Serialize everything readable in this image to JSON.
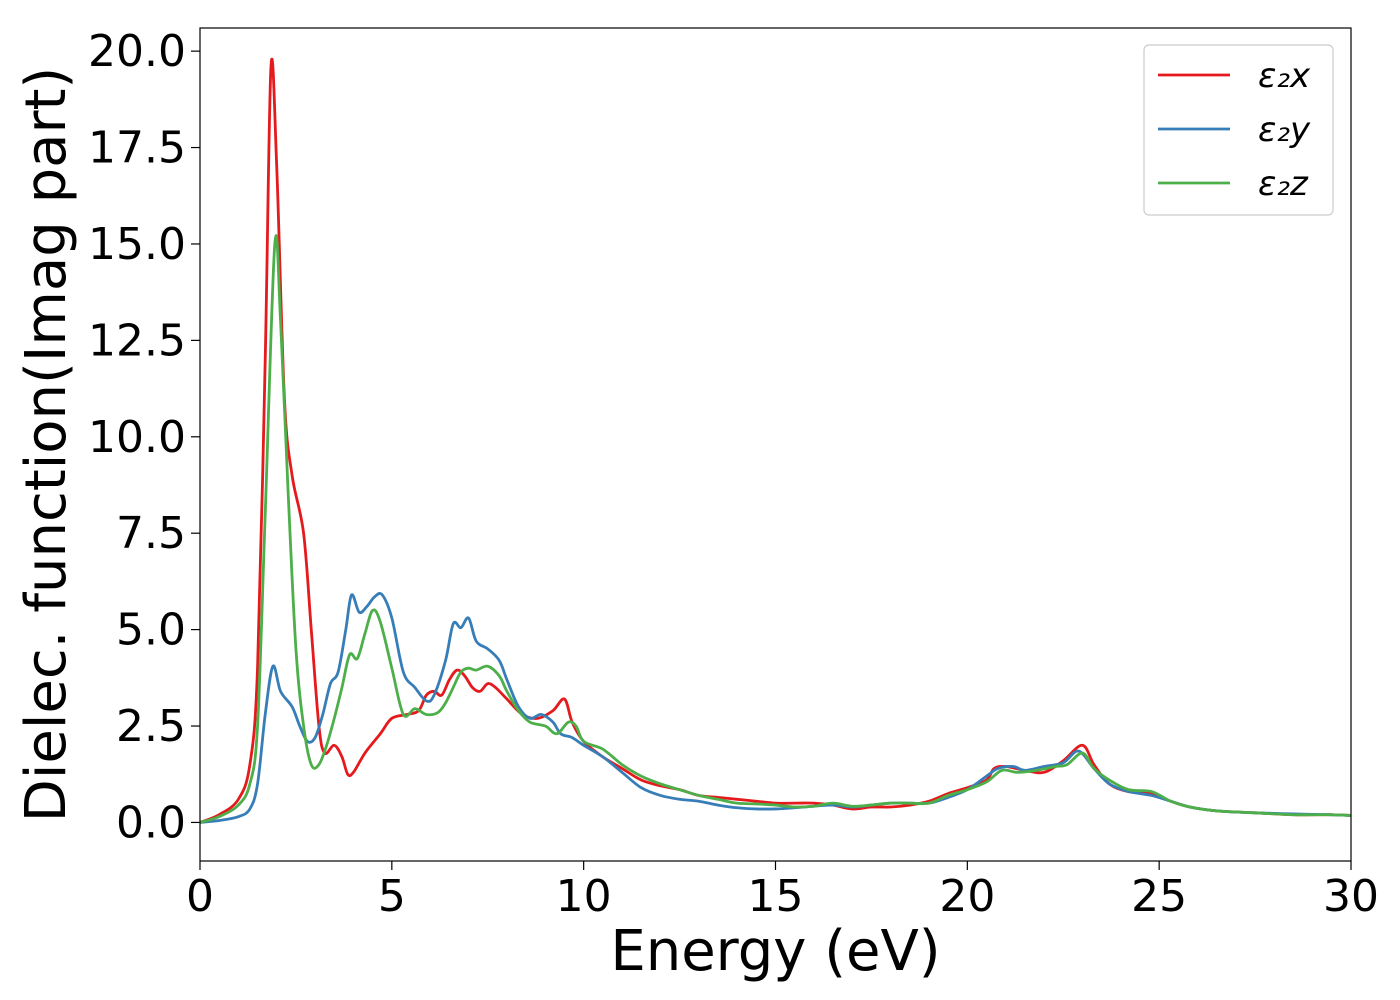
{
  "chart_data": {
    "type": "line",
    "title": "",
    "xlabel": "Energy (eV)",
    "ylabel": "Dielec. function(Imag part)",
    "xlim": [
      0,
      30
    ],
    "ylim": [
      -1.0,
      20.6
    ],
    "xticks": [
      0,
      5,
      10,
      15,
      20,
      25,
      30
    ],
    "xtick_labels": [
      "0",
      "5",
      "10",
      "15",
      "20",
      "25",
      "30"
    ],
    "yticks": [
      0.0,
      2.5,
      5.0,
      7.5,
      10.0,
      12.5,
      15.0,
      17.5,
      20.0
    ],
    "ytick_labels": [
      "0.0",
      "2.5",
      "5.0",
      "7.5",
      "10.0",
      "12.5",
      "15.0",
      "17.5",
      "20.0"
    ],
    "grid": false,
    "legend_position": "top-right",
    "series": [
      {
        "name": "ε₂x",
        "color": "#e41a1c",
        "points": [
          [
            0,
            0
          ],
          [
            0.5,
            0.2
          ],
          [
            1.0,
            0.6
          ],
          [
            1.3,
            1.5
          ],
          [
            1.5,
            4.0
          ],
          [
            1.7,
            12.0
          ],
          [
            1.85,
            19.6
          ],
          [
            2.0,
            17.0
          ],
          [
            2.2,
            11.0
          ],
          [
            2.4,
            9.0
          ],
          [
            2.7,
            7.5
          ],
          [
            2.9,
            5.0
          ],
          [
            3.1,
            2.5
          ],
          [
            3.25,
            1.8
          ],
          [
            3.5,
            2.0
          ],
          [
            3.7,
            1.7
          ],
          [
            3.85,
            1.25
          ],
          [
            4.0,
            1.3
          ],
          [
            4.3,
            1.8
          ],
          [
            4.7,
            2.3
          ],
          [
            5.0,
            2.7
          ],
          [
            5.4,
            2.8
          ],
          [
            5.7,
            2.9
          ],
          [
            5.9,
            3.3
          ],
          [
            6.1,
            3.4
          ],
          [
            6.3,
            3.3
          ],
          [
            6.5,
            3.7
          ],
          [
            6.7,
            3.95
          ],
          [
            6.9,
            3.8
          ],
          [
            7.1,
            3.5
          ],
          [
            7.3,
            3.4
          ],
          [
            7.5,
            3.6
          ],
          [
            7.7,
            3.5
          ],
          [
            8.0,
            3.2
          ],
          [
            8.4,
            2.8
          ],
          [
            8.8,
            2.7
          ],
          [
            9.2,
            2.9
          ],
          [
            9.5,
            3.2
          ],
          [
            9.7,
            2.6
          ],
          [
            10.0,
            2.1
          ],
          [
            10.5,
            1.7
          ],
          [
            11.0,
            1.4
          ],
          [
            11.5,
            1.1
          ],
          [
            12.0,
            0.95
          ],
          [
            12.5,
            0.85
          ],
          [
            13.0,
            0.7
          ],
          [
            13.5,
            0.65
          ],
          [
            14.0,
            0.6
          ],
          [
            14.5,
            0.55
          ],
          [
            15.0,
            0.5
          ],
          [
            15.5,
            0.5
          ],
          [
            16.0,
            0.5
          ],
          [
            16.5,
            0.45
          ],
          [
            17.0,
            0.35
          ],
          [
            17.5,
            0.4
          ],
          [
            18.0,
            0.4
          ],
          [
            18.5,
            0.45
          ],
          [
            19.0,
            0.55
          ],
          [
            19.5,
            0.75
          ],
          [
            20.0,
            0.9
          ],
          [
            20.5,
            1.1
          ],
          [
            20.7,
            1.4
          ],
          [
            21.0,
            1.45
          ],
          [
            21.5,
            1.35
          ],
          [
            22.0,
            1.3
          ],
          [
            22.5,
            1.6
          ],
          [
            23.0,
            2.0
          ],
          [
            23.3,
            1.5
          ],
          [
            23.7,
            1.0
          ],
          [
            24.2,
            0.8
          ],
          [
            24.8,
            0.75
          ],
          [
            25.3,
            0.55
          ],
          [
            25.8,
            0.4
          ],
          [
            26.5,
            0.3
          ],
          [
            27.5,
            0.25
          ],
          [
            28.5,
            0.2
          ],
          [
            29.5,
            0.2
          ],
          [
            30.0,
            0.18
          ]
        ]
      },
      {
        "name": "ε₂y",
        "color": "#377eb8",
        "points": [
          [
            0,
            0
          ],
          [
            0.5,
            0.05
          ],
          [
            1.0,
            0.15
          ],
          [
            1.3,
            0.35
          ],
          [
            1.5,
            1.0
          ],
          [
            1.7,
            2.8
          ],
          [
            1.9,
            4.05
          ],
          [
            2.1,
            3.4
          ],
          [
            2.4,
            3.0
          ],
          [
            2.6,
            2.5
          ],
          [
            2.8,
            2.1
          ],
          [
            3.0,
            2.2
          ],
          [
            3.2,
            2.8
          ],
          [
            3.4,
            3.6
          ],
          [
            3.6,
            3.9
          ],
          [
            3.8,
            5.0
          ],
          [
            3.95,
            5.9
          ],
          [
            4.15,
            5.45
          ],
          [
            4.35,
            5.6
          ],
          [
            4.55,
            5.85
          ],
          [
            4.75,
            5.9
          ],
          [
            5.0,
            5.3
          ],
          [
            5.3,
            3.9
          ],
          [
            5.6,
            3.5
          ],
          [
            5.9,
            3.15
          ],
          [
            6.1,
            3.3
          ],
          [
            6.4,
            4.2
          ],
          [
            6.6,
            5.15
          ],
          [
            6.8,
            5.05
          ],
          [
            7.0,
            5.3
          ],
          [
            7.2,
            4.7
          ],
          [
            7.5,
            4.5
          ],
          [
            7.8,
            4.2
          ],
          [
            8.0,
            3.7
          ],
          [
            8.3,
            3.0
          ],
          [
            8.6,
            2.7
          ],
          [
            8.9,
            2.8
          ],
          [
            9.2,
            2.6
          ],
          [
            9.4,
            2.3
          ],
          [
            9.7,
            2.2
          ],
          [
            10.0,
            2.0
          ],
          [
            10.5,
            1.7
          ],
          [
            11.0,
            1.3
          ],
          [
            11.5,
            0.9
          ],
          [
            12.0,
            0.7
          ],
          [
            12.5,
            0.6
          ],
          [
            13.0,
            0.55
          ],
          [
            13.5,
            0.45
          ],
          [
            14.0,
            0.38
          ],
          [
            14.5,
            0.35
          ],
          [
            15.0,
            0.35
          ],
          [
            15.5,
            0.38
          ],
          [
            16.0,
            0.42
          ],
          [
            16.5,
            0.45
          ],
          [
            17.0,
            0.4
          ],
          [
            17.5,
            0.45
          ],
          [
            18.0,
            0.5
          ],
          [
            18.5,
            0.5
          ],
          [
            19.0,
            0.5
          ],
          [
            19.5,
            0.65
          ],
          [
            20.0,
            0.85
          ],
          [
            20.5,
            1.2
          ],
          [
            20.8,
            1.4
          ],
          [
            21.2,
            1.45
          ],
          [
            21.5,
            1.35
          ],
          [
            22.0,
            1.45
          ],
          [
            22.5,
            1.55
          ],
          [
            22.9,
            1.85
          ],
          [
            23.3,
            1.4
          ],
          [
            23.7,
            1.0
          ],
          [
            24.2,
            0.8
          ],
          [
            24.8,
            0.7
          ],
          [
            25.3,
            0.55
          ],
          [
            25.8,
            0.4
          ],
          [
            26.5,
            0.3
          ],
          [
            27.5,
            0.25
          ],
          [
            28.5,
            0.22
          ],
          [
            29.5,
            0.2
          ],
          [
            30.0,
            0.18
          ]
        ]
      },
      {
        "name": "ε₂z",
        "color": "#4daf4a",
        "points": [
          [
            0,
            0
          ],
          [
            0.5,
            0.15
          ],
          [
            1.0,
            0.45
          ],
          [
            1.3,
            1.0
          ],
          [
            1.5,
            2.5
          ],
          [
            1.7,
            8.0
          ],
          [
            1.95,
            15.0
          ],
          [
            2.1,
            13.0
          ],
          [
            2.3,
            8.5
          ],
          [
            2.5,
            4.5
          ],
          [
            2.7,
            2.5
          ],
          [
            2.9,
            1.5
          ],
          [
            3.1,
            1.5
          ],
          [
            3.3,
            2.0
          ],
          [
            3.5,
            2.7
          ],
          [
            3.7,
            3.5
          ],
          [
            3.9,
            4.35
          ],
          [
            4.1,
            4.25
          ],
          [
            4.3,
            4.9
          ],
          [
            4.5,
            5.5
          ],
          [
            4.7,
            5.2
          ],
          [
            5.0,
            4.0
          ],
          [
            5.3,
            2.8
          ],
          [
            5.6,
            2.95
          ],
          [
            5.9,
            2.8
          ],
          [
            6.2,
            2.85
          ],
          [
            6.4,
            3.1
          ],
          [
            6.6,
            3.5
          ],
          [
            6.8,
            3.9
          ],
          [
            7.0,
            4.0
          ],
          [
            7.2,
            3.95
          ],
          [
            7.5,
            4.05
          ],
          [
            7.8,
            3.8
          ],
          [
            8.0,
            3.4
          ],
          [
            8.3,
            2.9
          ],
          [
            8.6,
            2.6
          ],
          [
            9.0,
            2.5
          ],
          [
            9.3,
            2.3
          ],
          [
            9.6,
            2.6
          ],
          [
            9.8,
            2.5
          ],
          [
            10.0,
            2.1
          ],
          [
            10.5,
            1.9
          ],
          [
            11.0,
            1.5
          ],
          [
            11.5,
            1.2
          ],
          [
            12.0,
            1.0
          ],
          [
            12.5,
            0.85
          ],
          [
            13.0,
            0.7
          ],
          [
            13.5,
            0.6
          ],
          [
            14.0,
            0.5
          ],
          [
            14.5,
            0.48
          ],
          [
            15.0,
            0.45
          ],
          [
            15.5,
            0.4
          ],
          [
            16.0,
            0.42
          ],
          [
            16.5,
            0.5
          ],
          [
            17.0,
            0.42
          ],
          [
            17.5,
            0.45
          ],
          [
            18.0,
            0.5
          ],
          [
            18.5,
            0.5
          ],
          [
            19.0,
            0.5
          ],
          [
            19.5,
            0.7
          ],
          [
            20.0,
            0.85
          ],
          [
            20.5,
            1.05
          ],
          [
            20.9,
            1.35
          ],
          [
            21.3,
            1.3
          ],
          [
            21.8,
            1.35
          ],
          [
            22.3,
            1.45
          ],
          [
            22.6,
            1.5
          ],
          [
            23.0,
            1.8
          ],
          [
            23.3,
            1.4
          ],
          [
            23.7,
            1.1
          ],
          [
            24.2,
            0.85
          ],
          [
            24.8,
            0.8
          ],
          [
            25.3,
            0.55
          ],
          [
            25.8,
            0.4
          ],
          [
            26.5,
            0.3
          ],
          [
            27.5,
            0.25
          ],
          [
            28.5,
            0.2
          ],
          [
            29.5,
            0.2
          ],
          [
            30.0,
            0.18
          ]
        ]
      }
    ]
  }
}
